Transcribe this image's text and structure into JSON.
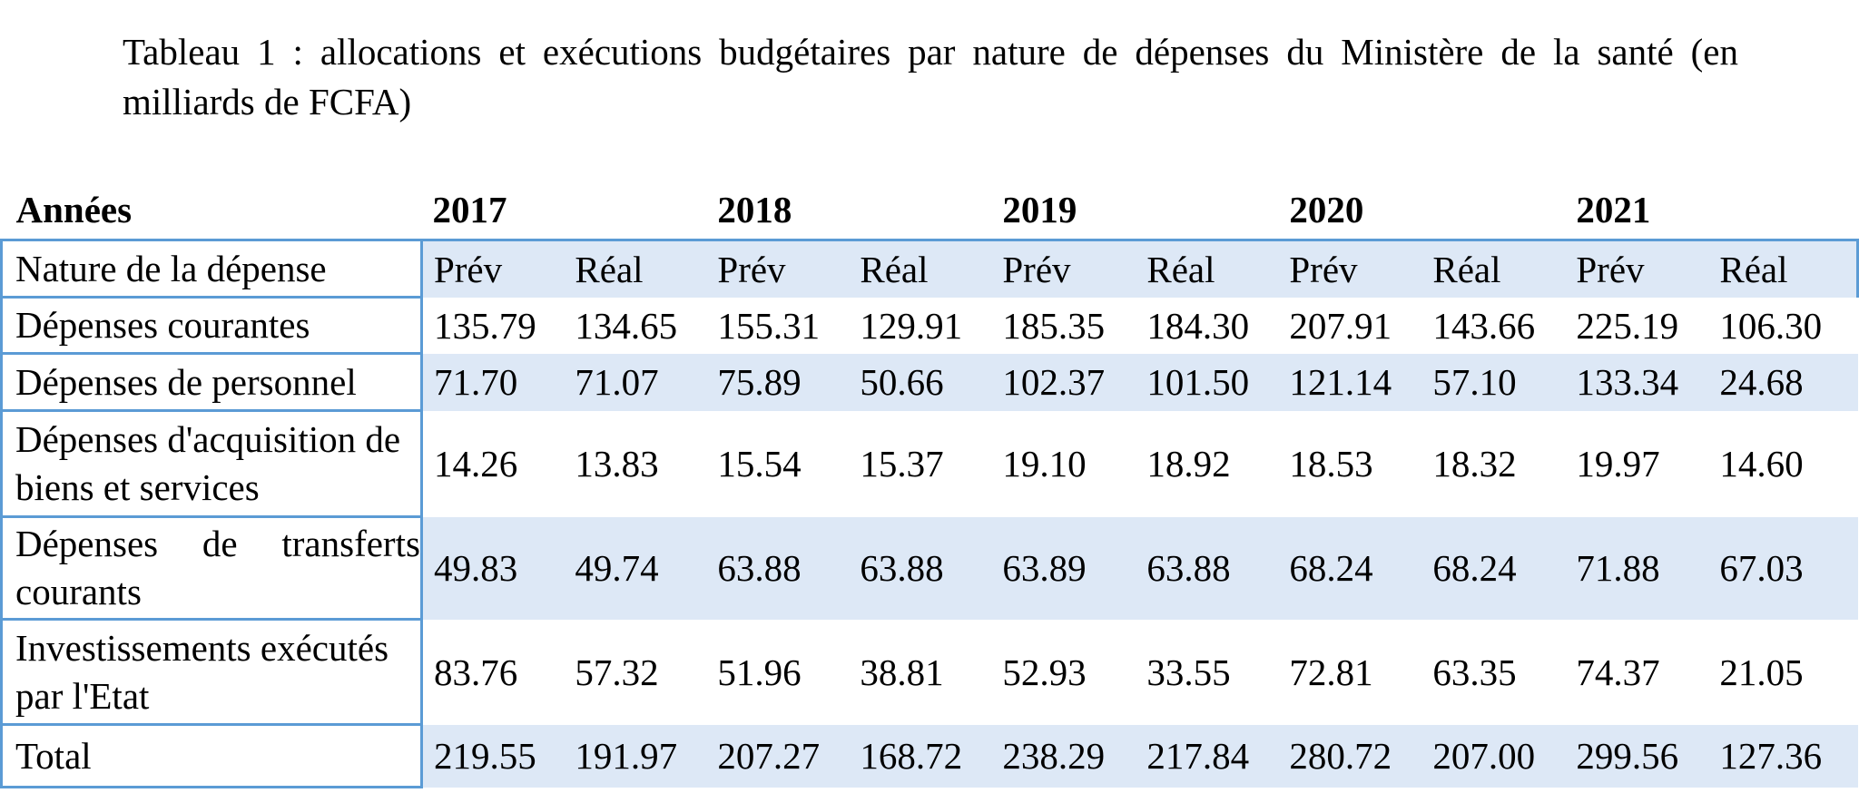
{
  "caption": "Tableau 1 : allocations et exécutions budgétaires par nature de dépenses du Ministère de la santé (en milliards de FCFA)",
  "table": {
    "year_header_label": "Années",
    "years": [
      "2017",
      "2018",
      "2019",
      "2020",
      "2021"
    ],
    "subheader_label": "Nature de la dépense",
    "subheaders": [
      "Prév",
      "Réal",
      "Prév",
      "Réal",
      "Prév",
      "Réal",
      "Prév",
      "Réal",
      "Prév",
      "Réal"
    ],
    "rows": [
      {
        "label": "Dépenses courantes",
        "values": [
          "135.79",
          "134.65",
          "155.31",
          "129.91",
          "185.35",
          "184.30",
          "207.91",
          "143.66",
          "225.19",
          "106.30"
        ]
      },
      {
        "label": "Dépenses de personnel",
        "values": [
          "71.70",
          "71.07",
          "75.89",
          "50.66",
          "102.37",
          "101.50",
          "121.14",
          "57.10",
          "133.34",
          "24.68"
        ]
      },
      {
        "label": "Dépenses d'acquisition de biens et services",
        "values": [
          "14.26",
          "13.83",
          "15.54",
          "15.37",
          "19.10",
          "18.92",
          "18.53",
          "18.32",
          "19.97",
          "14.60"
        ]
      },
      {
        "label": "Dépenses de transferts courants",
        "values": [
          "49.83",
          "49.74",
          "63.88",
          "63.88",
          "63.89",
          "63.88",
          "68.24",
          "68.24",
          "71.88",
          "67.03"
        ]
      },
      {
        "label": "Investissements exécutés par l'Etat",
        "values": [
          "83.76",
          "57.32",
          "51.96",
          "38.81",
          "52.93",
          "33.55",
          "72.81",
          "63.35",
          "74.37",
          "21.05"
        ]
      },
      {
        "label": "Total",
        "values": [
          "219.55",
          "191.97",
          "207.27",
          "168.72",
          "238.29",
          "217.84",
          "280.72",
          "207.00",
          "299.56",
          "127.36"
        ]
      }
    ]
  },
  "colors": {
    "border": "#5b9bd5",
    "shade": "#dde8f6"
  }
}
